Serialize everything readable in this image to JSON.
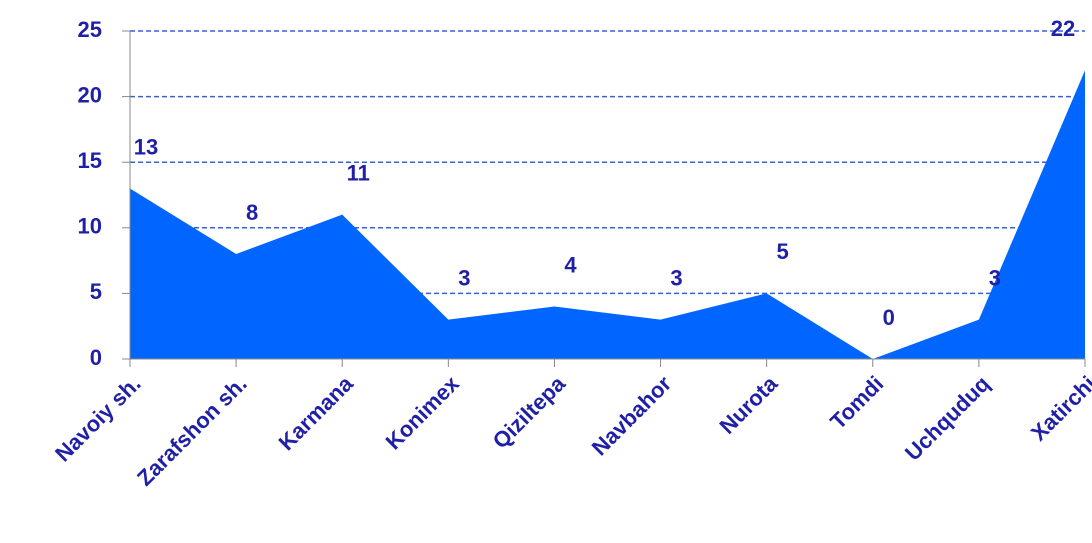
{
  "chart_data": {
    "type": "area",
    "categories": [
      "Navoiy sh.",
      "Zarafshon sh.",
      "Karmana",
      "Konimex",
      "Qiziltepa",
      "Navbahor",
      "Nurota",
      "Tomdi",
      "Uchquduq",
      "Xatirchi"
    ],
    "values": [
      13,
      8,
      11,
      3,
      4,
      3,
      5,
      0,
      3,
      22
    ],
    "color": "#0066ff",
    "ylim": [
      0,
      25
    ],
    "yticks": [
      0,
      5,
      10,
      15,
      20,
      25
    ],
    "grid": true
  }
}
